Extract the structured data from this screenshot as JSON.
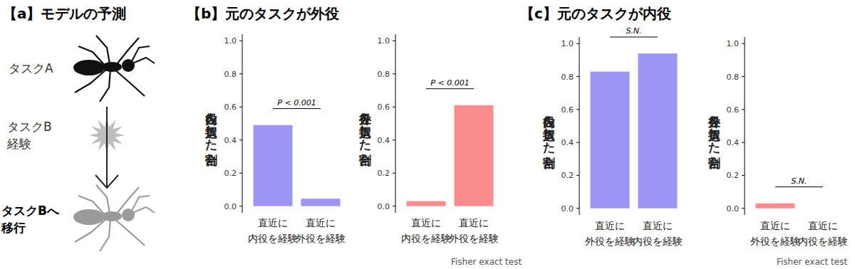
{
  "panels": {
    "a": {
      "title": "【a】モデルの予測",
      "labels": [
        "タスクA",
        "タスクB\n経験",
        "タスクBへ\n移行"
      ]
    },
    "b": {
      "title": "【b】元のタスクが外役",
      "test_label": "Fisher exact test"
    },
    "c": {
      "title": "【c】元のタスクが内役",
      "test_label": "Fisher exact test"
    }
  },
  "chart_data": [
    {
      "type": "bar",
      "y_label": "内役を選択した割合",
      "categories": [
        "直近に\n内役を経験",
        "直近に\n外役を経験"
      ],
      "values": [
        0.49,
        0.045
      ],
      "color": "#9b96f5",
      "ylim": [
        -0.04,
        1.04
      ],
      "yticks": [
        {
          "value": 0,
          "label": "0.0"
        },
        0.2,
        0.4,
        0.6,
        0.8,
        {
          "value": 1,
          "label": "1.0"
        }
      ],
      "grid": false,
      "comparison": {
        "label": "P < 0.001"
      }
    },
    {
      "type": "bar",
      "y_label": "外役を選択した割合",
      "categories": [
        "直近に\n内役を経験",
        "直近に\n外役を経験"
      ],
      "values": [
        0.03,
        0.61
      ],
      "color": "#fa8c8e",
      "ylim": [
        -0.04,
        1.04
      ],
      "yticks": [
        {
          "value": 0,
          "label": "0.0"
        },
        0.2,
        0.4,
        0.6,
        0.8,
        {
          "value": 1,
          "label": "1.0"
        }
      ],
      "grid": false,
      "comparison": {
        "label": "P < 0.001"
      }
    },
    {
      "type": "bar",
      "y_label": "内役を選択した割合",
      "categories": [
        "直近に\n外役を経験",
        "直近に\n内役を経験"
      ],
      "values": [
        0.83,
        0.94
      ],
      "color": "#9b96f5",
      "ylim": [
        -0.04,
        1.04
      ],
      "yticks": [
        {
          "value": 0,
          "label": "0.0"
        },
        0.2,
        0.4,
        0.6,
        0.8,
        {
          "value": 1,
          "label": "1.0"
        }
      ],
      "grid": false,
      "comparison": {
        "label": "S.N."
      }
    },
    {
      "type": "bar",
      "y_label": "外役を選択した割合",
      "categories": [
        "直近に\n外役を経験",
        "直近に\n内役を経験"
      ],
      "values": [
        0.03,
        0.0
      ],
      "color": "#fa8c8e",
      "ylim": [
        -0.04,
        1.04
      ],
      "yticks": [
        {
          "value": 0,
          "label": "0.0"
        },
        0.2,
        0.4,
        0.6,
        0.8,
        {
          "value": 1,
          "label": "1.0"
        }
      ],
      "grid": false,
      "comparison": {
        "label": "S.N."
      }
    }
  ]
}
